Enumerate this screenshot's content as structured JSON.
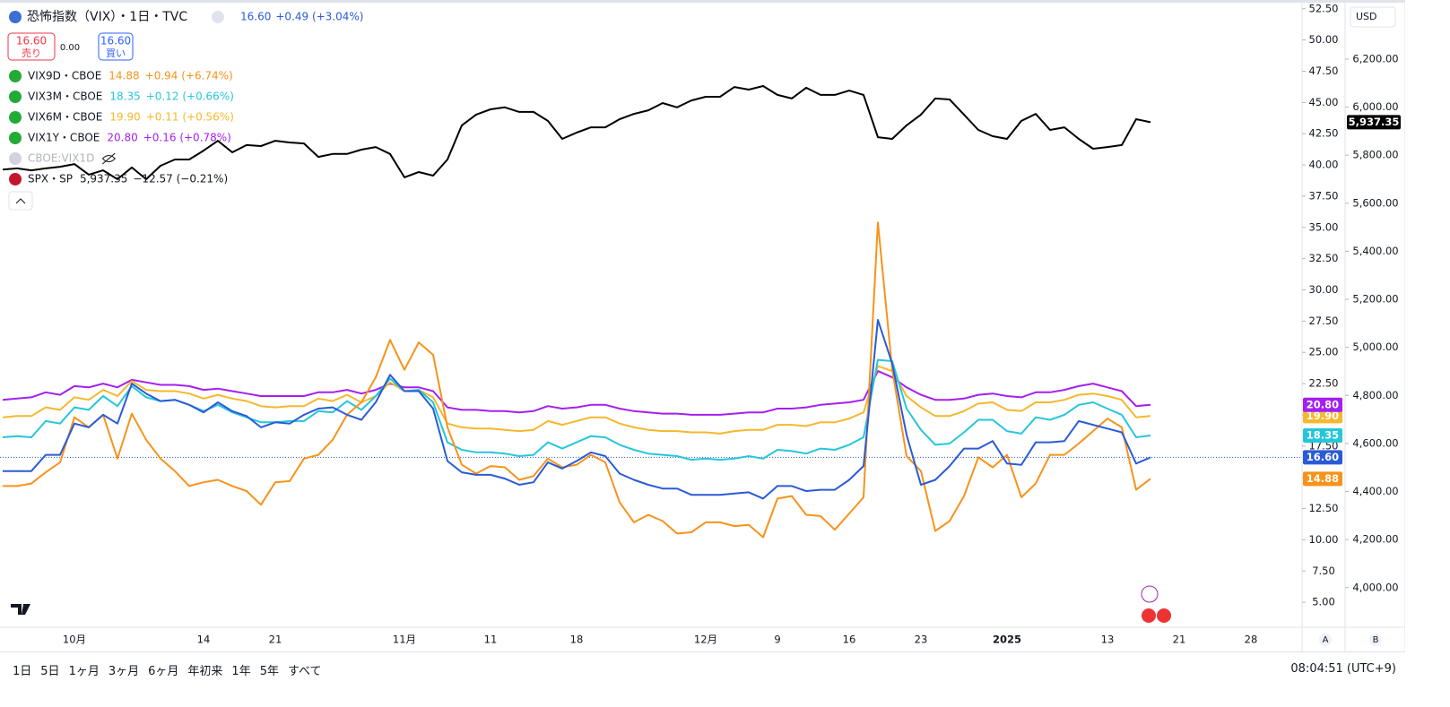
{
  "header": {
    "title": "恐怖指数（VIX）・1日・TVC",
    "sell_price": "16.60",
    "sell_label": "売り",
    "spread": "0.00",
    "buy_price": "16.60",
    "buy_label": "買い"
  },
  "hidden_series": "CBOE:VIX1D",
  "currency": "USD",
  "scale_buttons": [
    "A",
    "B"
  ],
  "timeframes": [
    "1日",
    "5日",
    "1ヶ月",
    "3ヶ月",
    "6ヶ月",
    "年初来",
    "1年",
    "5年",
    "すべて"
  ],
  "clock": "08:04:51 (UTC+9)",
  "chart_data": {
    "type": "line",
    "categories": [
      null,
      null,
      null,
      null,
      null,
      "10月",
      null,
      null,
      null,
      null,
      null,
      null,
      null,
      null,
      "14",
      null,
      null,
      null,
      null,
      "21",
      null,
      null,
      null,
      null,
      null,
      null,
      null,
      null,
      "11月",
      null,
      null,
      null,
      null,
      null,
      "11",
      null,
      null,
      null,
      null,
      null,
      "18",
      null,
      null,
      null,
      null,
      null,
      null,
      null,
      null,
      "12月",
      null,
      null,
      null,
      null,
      "9",
      null,
      null,
      null,
      null,
      "16",
      null,
      null,
      null,
      null,
      "23",
      null,
      null,
      null,
      null,
      null,
      "2025",
      null,
      null,
      null,
      null,
      null,
      null,
      "13",
      null,
      null,
      null,
      null,
      "21",
      null,
      null,
      null,
      null,
      "28"
    ],
    "ylim": [
      3,
      53.2
    ],
    "yticks": [
      {
        "value": 5,
        "label": "5.00"
      },
      {
        "value": 7.5,
        "label": "7.50"
      },
      {
        "value": 10,
        "label": "10.00"
      },
      {
        "value": 12.5,
        "label": "12.50"
      },
      {
        "value": 15,
        "label": "15.00"
      },
      {
        "value": 17.5,
        "label": "17.50"
      },
      {
        "value": 20,
        "label": "20.00"
      },
      {
        "value": 22.5,
        "label": "22.50"
      },
      {
        "value": 25,
        "label": "25.00"
      },
      {
        "value": 27.5,
        "label": "27.50"
      },
      {
        "value": 30,
        "label": "30.00"
      },
      {
        "value": 32.5,
        "label": "32.50"
      },
      {
        "value": 35,
        "label": "35.00"
      },
      {
        "value": 37.5,
        "label": "37.50"
      },
      {
        "value": 40,
        "label": "40.00"
      },
      {
        "value": 42.5,
        "label": "42.50"
      },
      {
        "value": 45,
        "label": "45.00"
      },
      {
        "value": 47.5,
        "label": "47.50"
      },
      {
        "value": 50,
        "label": "50.00"
      },
      {
        "value": 52.5,
        "label": "52.50"
      }
    ],
    "y2lim": [
      3835,
      6446
    ],
    "y2ticks": [
      {
        "value": 4000,
        "label": "4,000.00"
      },
      {
        "value": 4200,
        "label": "4,200.00"
      },
      {
        "value": 4400,
        "label": "4,400.00"
      },
      {
        "value": 4600,
        "label": "4,600.00"
      },
      {
        "value": 4800,
        "label": "4,800.00"
      },
      {
        "value": 5000,
        "label": "5,000.00"
      },
      {
        "value": 5200,
        "label": "5,200.00"
      },
      {
        "value": 5400,
        "label": "5,400.00"
      },
      {
        "value": 5600,
        "label": "5,600.00"
      },
      {
        "value": 5800,
        "label": "5,800.00"
      },
      {
        "value": 6000,
        "label": "6,000.00"
      },
      {
        "value": 6200,
        "label": "6,200.00"
      }
    ],
    "series": [
      {
        "color": "#2a5bd7",
        "last_label": "16.60",
        "change": "+0.49 (+3.04%)",
        "values": [
          15.5,
          15.5,
          15.5,
          16.8,
          16.8,
          19.3,
          19.0,
          20.0,
          19.3,
          22.5,
          21.7,
          21.1,
          21.2,
          20.8,
          20.2,
          21.0,
          20.3,
          19.9,
          19.0,
          19.4,
          19.3,
          20.0,
          20.5,
          20.6,
          20.0,
          19.6,
          21.0,
          23.2,
          21.9,
          21.9,
          20.5,
          16.3,
          15.4,
          15.2,
          15.2,
          14.9,
          14.4,
          14.6,
          16.2,
          15.7,
          16.3,
          17.0,
          16.7,
          15.3,
          14.8,
          14.4,
          14.1,
          14.1,
          13.6,
          13.6,
          13.6,
          13.7,
          13.8,
          13.3,
          14.3,
          14.3,
          13.9,
          14.0,
          14.0,
          14.8,
          15.9,
          27.6,
          24.1,
          18.4,
          14.4,
          14.8,
          15.9,
          17.3,
          17.3,
          17.9,
          16.1,
          16.0,
          17.8,
          17.8,
          17.9,
          19.5,
          19.2,
          18.9,
          18.6,
          16.1,
          16.6,
          null,
          null,
          null,
          null,
          null,
          null,
          null
        ]
      },
      {
        "name": "VIX9D・CBOE",
        "color": "#f7931a",
        "last_label": "14.88",
        "change": "+0.94 (+6.74%)",
        "values": [
          14.3,
          14.3,
          14.5,
          15.4,
          16.2,
          19.8,
          19.0,
          20.0,
          16.5,
          20.1,
          18.0,
          16.5,
          15.5,
          14.3,
          14.6,
          14.8,
          14.3,
          13.9,
          12.8,
          14.6,
          14.7,
          16.5,
          16.8,
          18.0,
          20.0,
          21.0,
          23.0,
          26.0,
          23.6,
          25.8,
          24.8,
          19.0,
          16.0,
          15.3,
          15.9,
          15.8,
          14.8,
          15.1,
          16.5,
          15.8,
          16.0,
          16.8,
          16.2,
          13.0,
          11.4,
          12.0,
          11.5,
          10.5,
          10.6,
          11.4,
          11.4,
          11.1,
          11.2,
          10.2,
          13.3,
          13.5,
          12.0,
          11.9,
          10.8,
          12.1,
          13.4,
          35.4,
          23.6,
          16.7,
          15.5,
          10.7,
          11.5,
          13.5,
          16.6,
          15.8,
          16.8,
          13.4,
          14.5,
          16.8,
          16.8,
          17.7,
          18.7,
          19.7,
          19.0,
          14.0,
          14.88,
          null,
          null,
          null,
          null,
          null,
          null,
          null
        ]
      },
      {
        "name": "VIX3M・CBOE",
        "color": "#26c6da",
        "last_label": "18.35",
        "change": "+0.12 (+0.66%)",
        "values": [
          18.2,
          18.3,
          18.2,
          19.5,
          19.3,
          20.6,
          20.4,
          21.5,
          20.7,
          22.3,
          21.4,
          21.1,
          21.2,
          20.8,
          20.3,
          20.8,
          20.2,
          19.8,
          19.4,
          19.4,
          19.5,
          19.5,
          20.3,
          20.2,
          21.1,
          20.4,
          21.5,
          22.9,
          21.9,
          22.0,
          21.0,
          17.8,
          17.2,
          17.0,
          17.0,
          16.9,
          16.7,
          16.8,
          17.8,
          17.3,
          17.8,
          18.3,
          18.2,
          17.6,
          17.2,
          16.9,
          16.8,
          16.7,
          16.4,
          16.5,
          16.4,
          16.5,
          16.7,
          16.5,
          17.2,
          17.1,
          16.9,
          17.3,
          17.2,
          17.6,
          18.2,
          24.4,
          24.3,
          20.5,
          18.8,
          17.6,
          17.7,
          18.6,
          19.6,
          19.6,
          18.7,
          18.5,
          19.8,
          19.6,
          20.0,
          20.8,
          21.0,
          20.5,
          20.0,
          18.2,
          18.35,
          null,
          null,
          null,
          null,
          null,
          null,
          null
        ]
      },
      {
        "name": "VIX6M・CBOE",
        "color": "#f5b82e",
        "last_label": "19.90",
        "change": "+0.11 (+0.56%)",
        "values": [
          19.8,
          19.9,
          19.9,
          20.6,
          20.4,
          21.4,
          21.2,
          22.0,
          21.5,
          22.7,
          22.0,
          21.9,
          21.9,
          21.7,
          21.3,
          21.6,
          21.3,
          21.1,
          20.7,
          20.6,
          20.7,
          20.7,
          21.3,
          21.1,
          21.6,
          21.0,
          21.5,
          22.6,
          21.9,
          22.0,
          21.4,
          19.3,
          19.0,
          18.9,
          18.9,
          18.8,
          18.7,
          18.8,
          19.5,
          19.2,
          19.5,
          19.8,
          19.8,
          19.3,
          19.0,
          18.8,
          18.7,
          18.7,
          18.6,
          18.6,
          18.5,
          18.7,
          18.8,
          18.8,
          19.2,
          19.2,
          19.1,
          19.4,
          19.4,
          19.7,
          20.2,
          23.9,
          23.5,
          21.5,
          20.6,
          19.9,
          19.9,
          20.3,
          20.9,
          21.0,
          20.4,
          20.3,
          21.0,
          21.0,
          21.2,
          21.6,
          21.7,
          21.5,
          21.2,
          19.8,
          19.9,
          null,
          null,
          null,
          null,
          null,
          null,
          null
        ]
      },
      {
        "name": "VIX1Y・CBOE",
        "color": "#a51ff0",
        "last_label": "20.80",
        "change": "+0.16 (+0.78%)",
        "values": [
          21.2,
          21.3,
          21.4,
          21.8,
          21.6,
          22.3,
          22.2,
          22.5,
          22.2,
          22.8,
          22.6,
          22.4,
          22.4,
          22.3,
          22.0,
          22.1,
          21.9,
          21.7,
          21.5,
          21.5,
          21.5,
          21.5,
          21.8,
          21.8,
          22.0,
          21.7,
          22.0,
          22.5,
          22.2,
          22.2,
          21.9,
          20.6,
          20.4,
          20.4,
          20.3,
          20.3,
          20.2,
          20.3,
          20.7,
          20.5,
          20.6,
          20.8,
          20.8,
          20.5,
          20.3,
          20.2,
          20.1,
          20.1,
          20.0,
          20.0,
          20.0,
          20.1,
          20.2,
          20.2,
          20.5,
          20.5,
          20.6,
          20.8,
          20.9,
          21.0,
          21.2,
          23.5,
          23.0,
          22.2,
          21.6,
          21.2,
          21.2,
          21.3,
          21.6,
          21.7,
          21.5,
          21.4,
          21.8,
          21.8,
          22.0,
          22.3,
          22.5,
          22.2,
          21.9,
          20.7,
          20.8,
          null,
          null,
          null,
          null,
          null,
          null,
          null
        ]
      },
      {
        "name": "SPX・SP",
        "color": "#000000",
        "axis": "y2",
        "last_label": "5,937.35",
        "change": "−12.57 (−0.21%)",
        "values": [
          5740,
          5745,
          5737,
          5745,
          5752,
          5763,
          5719,
          5737,
          5700,
          5749,
          5700,
          5756,
          5782,
          5782,
          5819,
          5860,
          5812,
          5842,
          5838,
          5860,
          5853,
          5849,
          5793,
          5805,
          5805,
          5823,
          5834,
          5805,
          5708,
          5730,
          5715,
          5782,
          5924,
          5969,
          5991,
          5999,
          5980,
          5980,
          5943,
          5868,
          5894,
          5916,
          5916,
          5950,
          5972,
          5987,
          6017,
          5999,
          6028,
          6043,
          6043,
          6084,
          6073,
          6088,
          6051,
          6036,
          6081,
          6051,
          6051,
          6069,
          6051,
          5875,
          5868,
          5924,
          5969,
          6036,
          6032,
          5969,
          5905,
          5879,
          5868,
          5943,
          5972,
          5905,
          5916,
          5868,
          5827,
          5834,
          5842,
          5950,
          5937.35,
          null,
          null,
          null,
          null,
          null,
          null,
          null
        ]
      }
    ]
  }
}
